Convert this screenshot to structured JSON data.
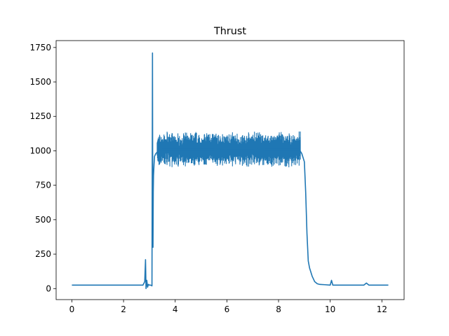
{
  "chart_data": {
    "type": "line",
    "title": "Thrust",
    "xlabel": "",
    "ylabel": "",
    "xlim": [
      -0.61,
      12.86
    ],
    "ylim": [
      -80,
      1800
    ],
    "xticks": [
      0,
      2,
      4,
      6,
      8,
      10,
      12
    ],
    "xtick_labels": [
      "0",
      "2",
      "4",
      "6",
      "8",
      "10",
      "12"
    ],
    "yticks": [
      0,
      250,
      500,
      750,
      1000,
      1250,
      1500,
      1750
    ],
    "ytick_labels": [
      "0",
      "250",
      "500",
      "750",
      "1000",
      "1250",
      "1500",
      "1750"
    ],
    "grid": false,
    "line_color": "#1f77b4",
    "series": [
      {
        "x": [
          0.0,
          0.5,
          1.0,
          1.5,
          2.0,
          2.5,
          2.75,
          2.82,
          2.85,
          2.87,
          2.9,
          2.93,
          2.96,
          3.0,
          3.05,
          3.1,
          3.12,
          3.13,
          3.14,
          3.15,
          3.16,
          3.18,
          3.2,
          3.25,
          3.3,
          3.4,
          3.5,
          3.7,
          4.0,
          4.5,
          5.0,
          5.5,
          6.0,
          6.5,
          7.0,
          7.5,
          8.0,
          8.5,
          8.8,
          8.9,
          9.0,
          9.05,
          9.1,
          9.15,
          9.2,
          9.3,
          9.4,
          9.5,
          9.6,
          9.8,
          10.0,
          10.05,
          10.1,
          10.2,
          10.5,
          11.0,
          11.3,
          11.4,
          11.5,
          12.0,
          12.25
        ],
        "y": [
          25,
          25,
          25,
          25,
          25,
          25,
          25,
          50,
          210,
          0,
          60,
          10,
          30,
          25,
          25,
          20,
          1710,
          600,
          300,
          700,
          820,
          900,
          960,
          980,
          990,
          1000,
          1010,
          1010,
          1010,
          1010,
          1010,
          1010,
          1015,
          1015,
          1015,
          1010,
          1010,
          1010,
          1010,
          980,
          920,
          700,
          400,
          200,
          150,
          90,
          50,
          35,
          30,
          28,
          25,
          60,
          25,
          25,
          25,
          25,
          25,
          40,
          25,
          25,
          25
        ]
      }
    ]
  }
}
